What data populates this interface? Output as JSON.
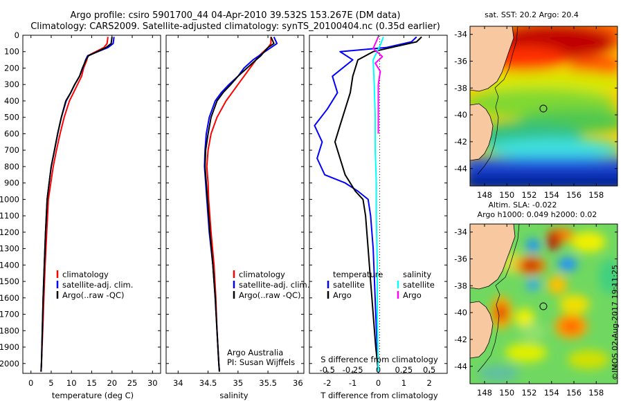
{
  "title_line1": "Argo profile: csiro 5901700_44 04-Apr-2010 39.532S 153.267E (DM data)",
  "title_line2": "Climatology: CARS2009. Satellite-adjusted climatology: synTS_20100404.nc (0.35d earlier)",
  "colors": {
    "climatology": "#ff0000",
    "satellite": "#0000ff",
    "argo": "#000000",
    "argo_salinity": "#ff00ff",
    "satellite_salinity": "#00ffff",
    "land": "#f8c8a0"
  },
  "depth_ticks": [
    "0",
    "100",
    "200",
    "300",
    "400",
    "500",
    "600",
    "700",
    "800",
    "900",
    "1000",
    "1100",
    "1200",
    "1300",
    "1400",
    "1500",
    "1600",
    "1700",
    "1800",
    "1900",
    "2000"
  ],
  "chart_data": [
    {
      "type": "line",
      "panel": "temperature",
      "xlabel": "temperature (deg C)",
      "ylabel": "depth",
      "xlim": [
        -2,
        32
      ],
      "ylim": [
        2060,
        0
      ],
      "xticks": [
        "0",
        "5",
        "10",
        "15",
        "20",
        "25",
        "30"
      ],
      "xtick_values": [
        0,
        5,
        10,
        15,
        20,
        25,
        30
      ],
      "legend": [
        "climatology",
        "satellite-adj. clim.",
        "Argo(..raw -QC)"
      ],
      "series": [
        {
          "name": "climatology",
          "color": "#ff0000",
          "x": [
            19.0,
            18.8,
            18.0,
            14.0,
            13.8,
            13.0,
            12.5,
            11.5,
            10.5,
            9.5,
            8.2,
            7.2,
            6.3,
            5.5,
            4.9,
            4.3,
            3.9,
            3.5,
            3.2,
            2.9,
            2.6,
            2.5
          ],
          "y": [
            10,
            50,
            75,
            125,
            150,
            200,
            250,
            300,
            350,
            400,
            500,
            600,
            700,
            800,
            900,
            1000,
            1200,
            1400,
            1600,
            1800,
            2000,
            2050
          ]
        },
        {
          "name": "satellite-adj. clim.",
          "color": "#0000ff",
          "x": [
            20.5,
            20.3,
            19.0,
            14.0,
            13.5,
            12.8,
            12.0,
            10.8,
            9.8,
            8.7,
            7.5,
            6.6,
            5.8,
            5.0,
            4.5,
            4.0,
            3.6,
            3.3,
            3.0,
            2.8,
            2.6,
            2.5
          ],
          "y": [
            10,
            50,
            75,
            125,
            150,
            200,
            250,
            300,
            350,
            400,
            500,
            600,
            700,
            800,
            900,
            1000,
            1200,
            1400,
            1600,
            1800,
            2000,
            2050
          ]
        },
        {
          "name": "Argo(..raw -QC)",
          "color": "#000000",
          "x": [
            20.0,
            19.8,
            18.5,
            14.2,
            13.6,
            12.7,
            12.0,
            10.8,
            9.8,
            8.6,
            7.5,
            6.6,
            5.8,
            5.0,
            4.5,
            4.0,
            3.6,
            3.3,
            3.0,
            2.8,
            2.6,
            2.5
          ],
          "y": [
            10,
            50,
            75,
            125,
            150,
            200,
            250,
            300,
            350,
            400,
            500,
            600,
            700,
            800,
            900,
            1000,
            1200,
            1400,
            1600,
            1800,
            2000,
            2050
          ]
        }
      ]
    },
    {
      "type": "line",
      "panel": "salinity",
      "xlabel": "salinity",
      "xlim": [
        33.8,
        36.1
      ],
      "ylim": [
        2060,
        0
      ],
      "xticks": [
        "34",
        "34.5",
        "35",
        "35.5",
        "36"
      ],
      "xtick_values": [
        34,
        34.5,
        35,
        35.5,
        36
      ],
      "legend": [
        "climatology",
        "satellite-adj. clim.",
        "Argo(..raw -QC)"
      ],
      "annotation": [
        "Argo Australia",
        "PI: Susan Wijffels"
      ],
      "series": [
        {
          "name": "climatology",
          "color": "#ff0000",
          "x": [
            35.55,
            35.55,
            35.5,
            35.35,
            35.3,
            35.2,
            35.1,
            35.0,
            34.9,
            34.8,
            34.65,
            34.55,
            34.5,
            34.48,
            34.5,
            34.51,
            34.55,
            34.6,
            34.63,
            34.65,
            34.68,
            34.69
          ],
          "y": [
            10,
            50,
            75,
            125,
            150,
            200,
            250,
            300,
            350,
            400,
            500,
            600,
            700,
            800,
            900,
            1000,
            1200,
            1400,
            1600,
            1800,
            2000,
            2050
          ]
        },
        {
          "name": "satellite-adj. clim.",
          "color": "#0000ff",
          "x": [
            35.6,
            35.65,
            35.55,
            35.35,
            35.25,
            35.1,
            35.0,
            34.85,
            34.72,
            34.62,
            34.52,
            34.47,
            34.45,
            34.44,
            34.46,
            34.48,
            34.52,
            34.58,
            34.62,
            34.65,
            34.68,
            34.69
          ],
          "y": [
            10,
            50,
            75,
            125,
            150,
            200,
            250,
            300,
            350,
            400,
            500,
            600,
            700,
            800,
            900,
            1000,
            1200,
            1400,
            1600,
            1800,
            2000,
            2050
          ]
        },
        {
          "name": "Argo(..raw -QC)",
          "color": "#000000",
          "x": [
            35.55,
            35.6,
            35.5,
            35.38,
            35.3,
            35.15,
            35.0,
            34.88,
            34.75,
            34.65,
            34.55,
            34.5,
            34.46,
            34.45,
            34.47,
            34.49,
            34.53,
            34.58,
            34.62,
            34.65,
            34.68,
            34.69
          ],
          "y": [
            10,
            50,
            75,
            125,
            150,
            200,
            250,
            300,
            350,
            400,
            500,
            600,
            700,
            800,
            900,
            1000,
            1200,
            1400,
            1600,
            1800,
            2000,
            2050
          ]
        }
      ]
    },
    {
      "type": "line",
      "panel": "difference",
      "xlabel": "T difference from climatology",
      "top_xlabel": "S difference from climatology",
      "xlim": [
        -2.7,
        2.7
      ],
      "ylim": [
        2060,
        0
      ],
      "xticks": [
        "-2",
        "-1",
        "0",
        "1",
        "2"
      ],
      "xtick_values": [
        -2,
        -1,
        0,
        1,
        2
      ],
      "s_xticks": [
        "-0.5",
        "-0.25",
        "0",
        "0.25",
        "0.5"
      ],
      "s_xtick_values": [
        -0.5,
        -0.25,
        0,
        0.25,
        0.5
      ],
      "legend_groups": [
        "temperature",
        "salinity"
      ],
      "legend_t": [
        "satellite",
        "Argo"
      ],
      "legend_s": [
        "satellite",
        "Argo"
      ],
      "series": [
        {
          "name": "temperature satellite",
          "color": "#0000ff",
          "x": [
            1.5,
            1.3,
            0.3,
            -1.5,
            -1.0,
            -1.8,
            -1.6,
            -2.0,
            -2.5,
            -2.2,
            -2.4,
            -2.1,
            -1.3,
            -0.8,
            -0.4,
            -0.3,
            -0.2,
            -0.15,
            -0.1,
            -0.05,
            0.0
          ],
          "y": [
            10,
            40,
            75,
            100,
            150,
            250,
            350,
            450,
            550,
            650,
            750,
            850,
            900,
            950,
            1000,
            1100,
            1300,
            1500,
            1700,
            1900,
            2050
          ]
        },
        {
          "name": "temperature Argo",
          "color": "#000000",
          "x": [
            1.7,
            1.5,
            0.5,
            -0.2,
            -0.8,
            -1.0,
            -1.1,
            -1.3,
            -1.5,
            -1.7,
            -1.5,
            -1.3,
            -1.1,
            -0.9,
            -0.6,
            -0.5,
            -0.4,
            -0.3,
            -0.2,
            -0.1,
            0.0
          ],
          "y": [
            10,
            40,
            75,
            100,
            150,
            250,
            350,
            450,
            550,
            650,
            750,
            850,
            900,
            950,
            1000,
            1100,
            1300,
            1500,
            1700,
            1900,
            2050
          ]
        },
        {
          "name": "salinity satellite",
          "color": "#00ffff",
          "x": [
            0.05,
            0.02,
            -0.05,
            -0.04,
            -0.03,
            -0.03,
            -0.02,
            -0.02,
            -0.01,
            -0.01,
            -0.005,
            0.0
          ],
          "y": [
            10,
            60,
            150,
            300,
            500,
            700,
            900,
            1100,
            1400,
            1700,
            1900,
            2050
          ]
        },
        {
          "name": "salinity Argo",
          "color": "#ff00ff",
          "x": [
            0.0,
            -0.05,
            0.04,
            -0.03,
            0.02,
            0.0,
            0.0,
            0.0,
            0.0
          ],
          "y": [
            10,
            80,
            130,
            170,
            220,
            300,
            400,
            500,
            600
          ]
        }
      ]
    }
  ],
  "maps": {
    "sst": {
      "title": "sat. SST: 20.2  Argo: 20.4",
      "yticks": [
        "-34",
        "-36",
        "-38",
        "-40",
        "-42",
        "-44"
      ],
      "ytick_values": [
        -34,
        -36,
        -38,
        -40,
        -42,
        -44
      ],
      "xticks": [
        "148",
        "150",
        "152",
        "154",
        "156",
        "158"
      ],
      "xtick_values": [
        148,
        150,
        152,
        154,
        156,
        158
      ],
      "lon_range": [
        146.7,
        159.9
      ],
      "lat_range": [
        -45.3,
        -33.4
      ],
      "argo_lon": 153.267,
      "argo_lat": -39.532
    },
    "sla": {
      "title_line1": "Altim. SLA: -0.022",
      "title_line2": "Argo h1000: 0.049 h2000: 0.02",
      "yticks": [
        "-34",
        "-36",
        "-38",
        "-40",
        "-42",
        "-44"
      ],
      "ytick_values": [
        -34,
        -36,
        -38,
        -40,
        -42,
        -44
      ],
      "xticks": [
        "148",
        "150",
        "152",
        "154",
        "156",
        "158"
      ],
      "xtick_values": [
        148,
        150,
        152,
        154,
        156,
        158
      ],
      "lon_range": [
        146.7,
        159.9
      ],
      "lat_range": [
        -45.3,
        -33.4
      ],
      "argo_lon": 153.267,
      "argo_lat": -39.532
    }
  },
  "stamp": "©IMOS 02-Aug-2017 19:11:25"
}
